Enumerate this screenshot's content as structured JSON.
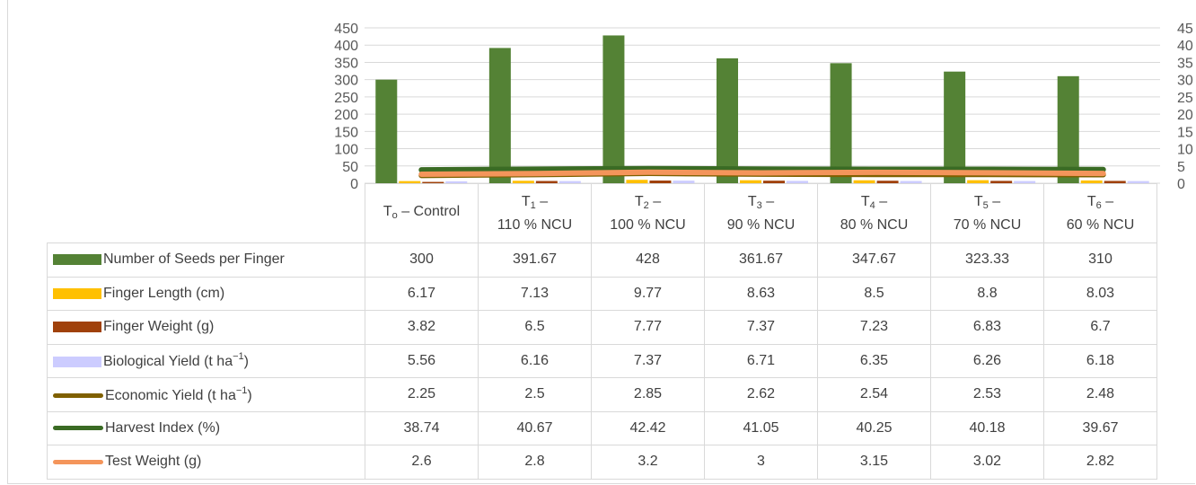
{
  "chart_data": {
    "type": "bar",
    "categories": [
      {
        "main": "T",
        "sub": "o",
        "rest": " – Control",
        "line2": ""
      },
      {
        "main": "T",
        "sub": "1",
        "rest": " –",
        "line2": "110 % NCU"
      },
      {
        "main": "T",
        "sub": "2",
        "rest": " –",
        "line2": "100 % NCU"
      },
      {
        "main": "T",
        "sub": "3",
        "rest": " –",
        "line2": "90 % NCU"
      },
      {
        "main": "T",
        "sub": "4",
        "rest": " –",
        "line2": "80 % NCU"
      },
      {
        "main": "T",
        "sub": "5",
        "rest": " –",
        "line2": "70 % NCU"
      },
      {
        "main": "T",
        "sub": "6",
        "rest": " –",
        "line2": "60 % NCU"
      }
    ],
    "series": [
      {
        "name": "Number of Seeds per Finger",
        "kind": "bar",
        "axis": "primary",
        "color": "#548235",
        "values": [
          "300",
          "391.67",
          "428",
          "361.67",
          "347.67",
          "323.33",
          "310"
        ]
      },
      {
        "name": "Finger Length (cm)",
        "kind": "bar",
        "axis": "primary",
        "color": "#ffc000",
        "values": [
          "6.17",
          "7.13",
          "9.77",
          "8.63",
          "8.5",
          "8.8",
          "8.03"
        ]
      },
      {
        "name": "Finger Weight  (g)",
        "kind": "bar",
        "axis": "primary",
        "color": "#a0410b",
        "values": [
          "3.82",
          "6.5",
          "7.77",
          "7.37",
          "7.23",
          "6.83",
          "6.7"
        ]
      },
      {
        "name": "Biological Yield (t ha",
        "name_sup": "−1",
        "name_end": ")",
        "kind": "bar",
        "axis": "primary",
        "color": "#ccccff",
        "values": [
          "5.56",
          "6.16",
          "7.37",
          "6.71",
          "6.35",
          "6.26",
          "6.18"
        ]
      },
      {
        "name": "Economic Yield (t ha",
        "name_sup": "−1",
        "name_end": ")",
        "kind": "line",
        "axis": "secondary",
        "color": "#7f6000",
        "values": [
          "2.25",
          "2.5",
          "2.85",
          "2.62",
          "2.54",
          "2.53",
          "2.48"
        ]
      },
      {
        "name": "Harvest Index (%)",
        "kind": "line",
        "axis": "primary",
        "color": "#3a6b24",
        "values": [
          "38.74",
          "40.67",
          "42.42",
          "41.05",
          "40.25",
          "40.18",
          "39.67"
        ]
      },
      {
        "name": "Test Weight (g)",
        "kind": "line",
        "axis": "secondary",
        "color": "#f4955b",
        "values": [
          "2.6",
          "2.8",
          "3.2",
          "3",
          "3.15",
          "3.02",
          "2.82"
        ]
      }
    ],
    "ylim": [
      0,
      450
    ],
    "yticks": [
      "0",
      "50",
      "100",
      "150",
      "200",
      "250",
      "300",
      "350",
      "400",
      "450"
    ],
    "ylim_secondary": [
      0,
      45
    ],
    "yticks_secondary": [
      "0",
      "5",
      "10",
      "15",
      "20",
      "25",
      "30",
      "35",
      "40",
      "45"
    ],
    "grid": true,
    "legend": "data-table"
  }
}
